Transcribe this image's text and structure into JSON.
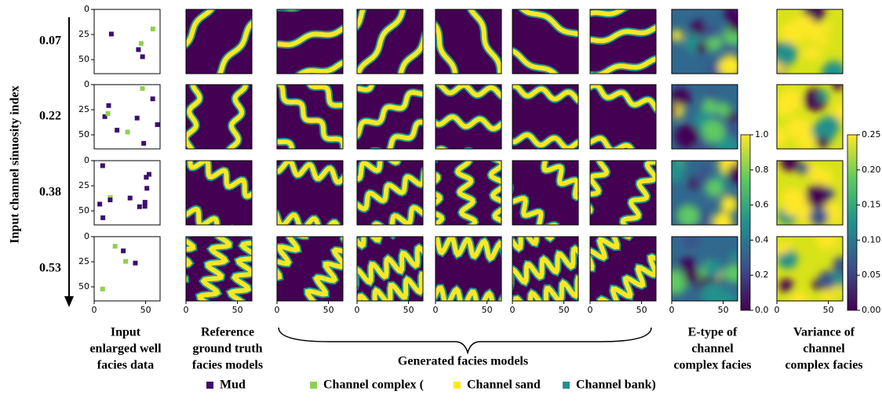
{
  "y_axis_label": "Input channel sinuosity index",
  "row_labels": [
    "0.07",
    "0.22",
    "0.38",
    "0.53"
  ],
  "columns": [
    {
      "caption": [
        "Input",
        "enlarged well",
        "facies data"
      ]
    },
    {
      "caption": [
        "Reference",
        "ground truth",
        "facies models"
      ]
    },
    {
      "caption": [
        "E-type of",
        "channel",
        "complex facies"
      ]
    },
    {
      "caption": [
        "Variance of",
        "channel",
        "complex facies"
      ]
    }
  ],
  "generated_label": "Generated facies models",
  "panel_lim": [
    0,
    64
  ],
  "panel_xticks": [
    0,
    50
  ],
  "panel_yticks": [
    0,
    25,
    50
  ],
  "etype_colorbar": {
    "lim": [
      0,
      1
    ],
    "ticks": [
      {
        "value": 0,
        "label": "0.0"
      },
      0.2,
      0.4,
      0.6,
      0.8,
      {
        "value": 1,
        "label": "1.0"
      }
    ]
  },
  "variance_colorbar": {
    "lim": [
      0,
      0.25
    ],
    "ticks": [
      {
        "value": 0,
        "label": "0.00"
      },
      0.05,
      {
        "value": 0.1,
        "label": "0.10"
      },
      0.15,
      {
        "value": 0.2,
        "label": "0.20"
      },
      0.25
    ]
  },
  "legend": [
    {
      "label": "Mud",
      "color": "#3b0f6f"
    },
    {
      "label": "Channel complex (",
      "color": "#8fd14f"
    },
    {
      "label": "Channel sand",
      "color": "#fde725"
    },
    {
      "label": "Channel bank)",
      "color": "#21918c"
    }
  ]
}
